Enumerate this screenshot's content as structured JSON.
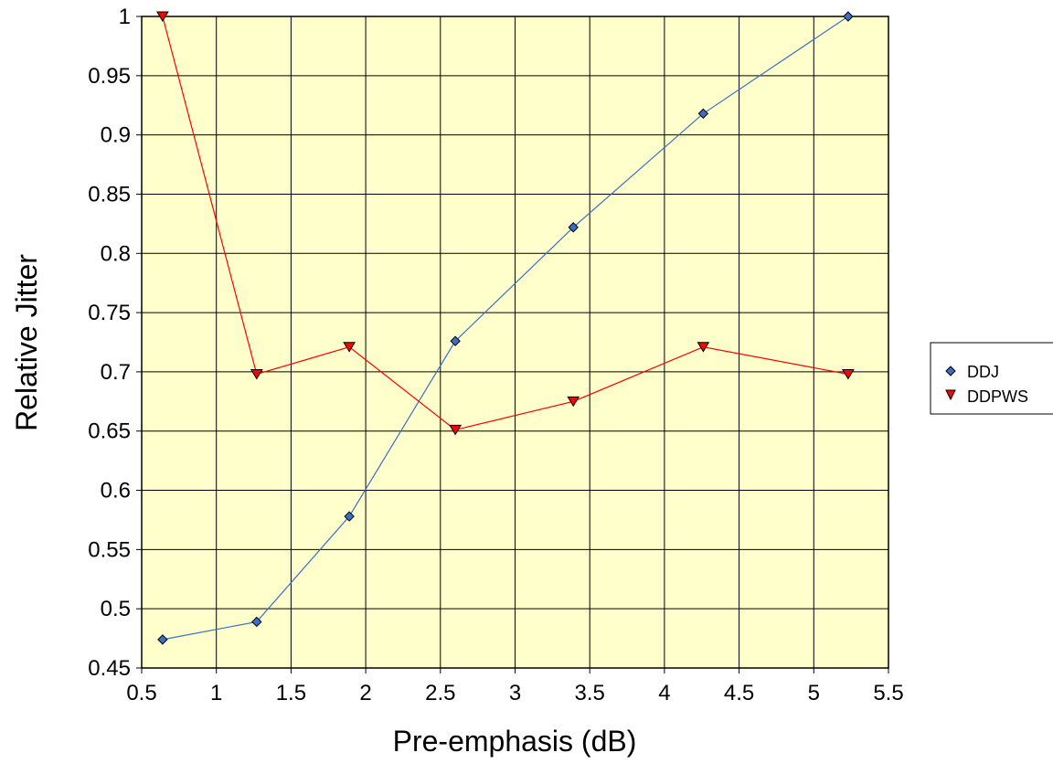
{
  "chart_data": {
    "type": "line",
    "title": "",
    "xlabel": "Pre-emphasis (dB)",
    "ylabel": "Relative Jitter",
    "xlim": [
      0.5,
      5.5
    ],
    "ylim": [
      0.45,
      1.0
    ],
    "xticks": [
      0.5,
      1,
      1.5,
      2,
      2.5,
      3,
      3.5,
      4,
      4.5,
      5,
      5.5
    ],
    "yticks": [
      0.45,
      0.5,
      0.55,
      0.6,
      0.65,
      0.7,
      0.75,
      0.8,
      0.85,
      0.9,
      0.95,
      1
    ],
    "x_tick_labels": [
      "0.5",
      "1",
      "1.5",
      "2",
      "2.5",
      "3",
      "3.5",
      "4",
      "4.5",
      "5",
      "5.5"
    ],
    "y_tick_labels": [
      "0.45",
      "0.5",
      "0.55",
      "0.6",
      "0.65",
      "0.7",
      "0.75",
      "0.8",
      "0.85",
      "0.9",
      "0.95",
      "1"
    ],
    "grid": true,
    "plot_background": "#ffffcc",
    "legend_position": "right",
    "series": [
      {
        "name": "DDJ",
        "marker": "diamond",
        "color": "#3a6fc4",
        "x": [
          0.64,
          1.27,
          1.89,
          2.6,
          3.39,
          4.26,
          5.23
        ],
        "y": [
          0.474,
          0.489,
          0.578,
          0.726,
          0.822,
          0.918,
          1.0
        ]
      },
      {
        "name": "DDPWS",
        "marker": "triangle-down",
        "color": "#ff0000",
        "x": [
          0.64,
          1.27,
          1.89,
          2.6,
          3.39,
          4.26,
          5.23
        ],
        "y": [
          1.0,
          0.698,
          0.721,
          0.651,
          0.675,
          0.721,
          0.698
        ]
      }
    ]
  }
}
